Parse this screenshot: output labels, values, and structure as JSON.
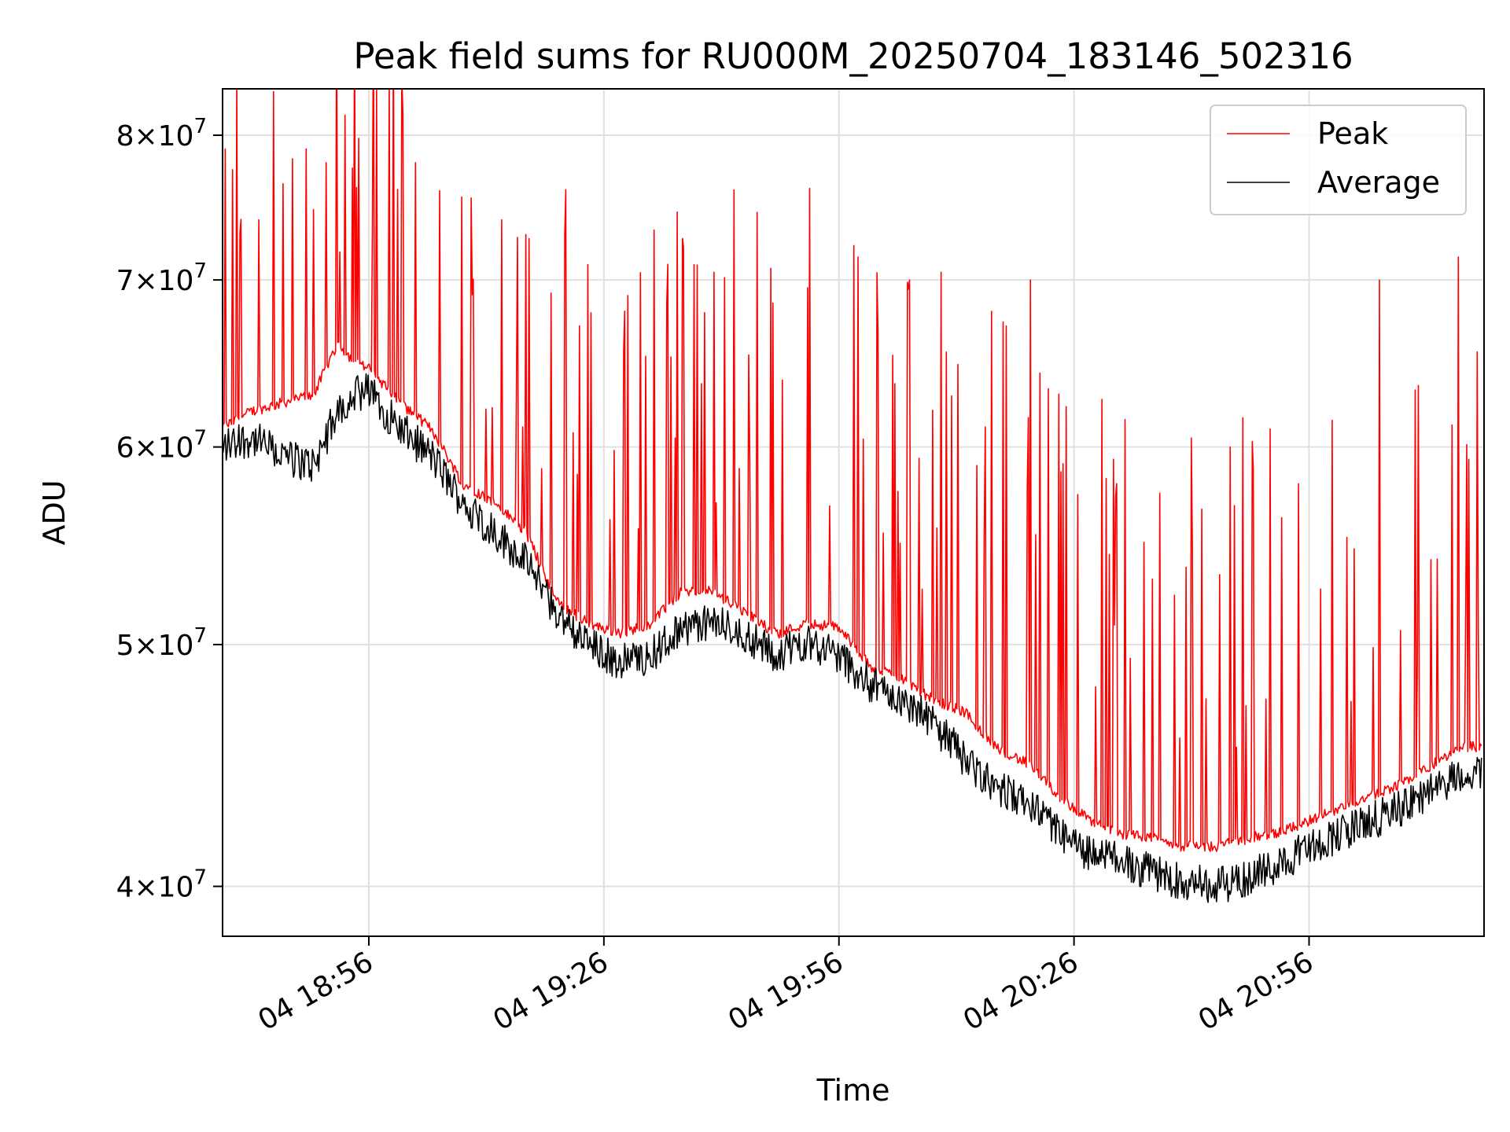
{
  "chart_data": {
    "type": "line",
    "title": "Peak field sums for RU000M_20250704_183146_502316",
    "xlabel": "Time",
    "ylabel": "ADU",
    "y_scale": "log",
    "ylim": [
      38200000,
      83500000
    ],
    "xlim": [
      "2025-07-04 18:37:20",
      "2025-07-04 21:18:20"
    ],
    "grid": true,
    "legend_position": "top-right",
    "x_ticks": [
      {
        "time": "2025-07-04 18:56",
        "label": "04 18:56"
      },
      {
        "time": "2025-07-04 19:26",
        "label": "04 19:26"
      },
      {
        "time": "2025-07-04 19:56",
        "label": "04 19:56"
      },
      {
        "time": "2025-07-04 20:26",
        "label": "04 20:26"
      },
      {
        "time": "2025-07-04 20:56",
        "label": "04 20:56"
      }
    ],
    "y_ticks": [
      {
        "value": 40000000,
        "mantissa": "4",
        "exponent": "7"
      },
      {
        "value": 50000000,
        "mantissa": "5",
        "exponent": "7"
      },
      {
        "value": 60000000,
        "mantissa": "6",
        "exponent": "7"
      },
      {
        "value": 70000000,
        "mantissa": "7",
        "exponent": "7"
      },
      {
        "value": 80000000,
        "mantissa": "8",
        "exponent": "7"
      }
    ],
    "series": [
      {
        "name": "Peak",
        "color": "#ff0000",
        "x": [
          "2025-07-04 18:37",
          "2025-07-04 18:41",
          "2025-07-04 18:45",
          "2025-07-04 18:49",
          "2025-07-04 18:52",
          "2025-07-04 18:54",
          "2025-07-04 18:56",
          "2025-07-04 19:00",
          "2025-07-04 19:04",
          "2025-07-04 19:08",
          "2025-07-04 19:12",
          "2025-07-04 19:16",
          "2025-07-04 19:20",
          "2025-07-04 19:24",
          "2025-07-04 19:28",
          "2025-07-04 19:32",
          "2025-07-04 19:36",
          "2025-07-04 19:40",
          "2025-07-04 19:44",
          "2025-07-04 19:48",
          "2025-07-04 19:52",
          "2025-07-04 19:56",
          "2025-07-04 20:00",
          "2025-07-04 20:04",
          "2025-07-04 20:08",
          "2025-07-04 20:12",
          "2025-07-04 20:16",
          "2025-07-04 20:20",
          "2025-07-04 20:24",
          "2025-07-04 20:28",
          "2025-07-04 20:32",
          "2025-07-04 20:36",
          "2025-07-04 20:40",
          "2025-07-04 20:44",
          "2025-07-04 20:48",
          "2025-07-04 20:52",
          "2025-07-04 20:56",
          "2025-07-04 21:00",
          "2025-07-04 21:04",
          "2025-07-04 21:08",
          "2025-07-04 21:12",
          "2025-07-04 21:16",
          "2025-07-04 21:18"
        ],
        "values": [
          61000000,
          62000000,
          62500000,
          63000000,
          66000000,
          65000000,
          64500000,
          62500000,
          61000000,
          58000000,
          57000000,
          55500000,
          52000000,
          51000000,
          50500000,
          51000000,
          52500000,
          52500000,
          51500000,
          50500000,
          51000000,
          50800000,
          49000000,
          48500000,
          47500000,
          47000000,
          45500000,
          44800000,
          43500000,
          42500000,
          42000000,
          41800000,
          41500000,
          41500000,
          41800000,
          42000000,
          42500000,
          43000000,
          43500000,
          44000000,
          44800000,
          45500000,
          45500000
        ],
        "spikes": [
          {
            "x": "2025-07-04 18:37:40",
            "value": 79000000
          },
          {
            "x": "2025-07-04 18:38:40",
            "value": 77500000
          },
          {
            "x": "2025-07-04 18:42:00",
            "value": 74000000
          },
          {
            "x": "2025-07-04 18:45:00",
            "value": 76500000
          },
          {
            "x": "2025-07-04 18:48:00",
            "value": 79000000
          },
          {
            "x": "2025-07-04 18:50:30",
            "value": 78000000
          },
          {
            "x": "2025-07-04 18:53:00",
            "value": 81500000
          },
          {
            "x": "2025-07-04 18:57:00",
            "value": 83500000
          },
          {
            "x": "2025-07-04 19:00:20",
            "value": 81500000
          },
          {
            "x": "2025-07-04 19:02:00",
            "value": 78000000
          },
          {
            "x": "2025-07-04 19:05:00",
            "value": 76000000
          },
          {
            "x": "2025-07-04 19:09:00",
            "value": 75500000
          },
          {
            "x": "2025-07-04 19:13:00",
            "value": 74000000
          },
          {
            "x": "2025-07-04 19:16:00",
            "value": 73000000
          },
          {
            "x": "2025-07-04 19:21:00",
            "value": 73000000
          },
          {
            "x": "2025-07-04 19:24:00",
            "value": 71000000
          },
          {
            "x": "2025-07-04 19:29:00",
            "value": 69000000
          },
          {
            "x": "2025-07-04 19:34:00",
            "value": 68500000
          },
          {
            "x": "2025-07-04 19:37:30",
            "value": 71000000
          },
          {
            "x": "2025-07-04 19:40:00",
            "value": 70500000
          },
          {
            "x": "2025-07-04 19:45:30",
            "value": 74500000
          },
          {
            "x": "2025-07-04 19:52:00",
            "value": 69500000
          },
          {
            "x": "2025-07-04 19:58:30",
            "value": 71500000
          },
          {
            "x": "2025-07-04 20:05:00",
            "value": 70000000
          },
          {
            "x": "2025-07-04 20:09:00",
            "value": 70500000
          },
          {
            "x": "2025-07-04 20:15:30",
            "value": 68000000
          },
          {
            "x": "2025-07-04 20:20:30",
            "value": 70000000
          },
          {
            "x": "2025-07-04 20:24:00",
            "value": 63000000
          },
          {
            "x": "2025-07-04 20:31:30",
            "value": 58000000
          },
          {
            "x": "2025-07-04 20:37:00",
            "value": 57500000
          },
          {
            "x": "2025-07-04 20:41:00",
            "value": 60500000
          },
          {
            "x": "2025-07-04 20:46:00",
            "value": 60000000
          },
          {
            "x": "2025-07-04 20:51:00",
            "value": 61000000
          },
          {
            "x": "2025-07-04 20:59:00",
            "value": 61500000
          },
          {
            "x": "2025-07-04 21:05:00",
            "value": 70000000
          },
          {
            "x": "2025-07-04 21:10:00",
            "value": 63500000
          },
          {
            "x": "2025-07-04 21:15:00",
            "value": 71500000
          },
          {
            "x": "2025-07-04 21:17:30",
            "value": 65500000
          }
        ]
      },
      {
        "name": "Average",
        "color": "#000000",
        "x": [
          "2025-07-04 18:37",
          "2025-07-04 18:41",
          "2025-07-04 18:45",
          "2025-07-04 18:49",
          "2025-07-04 18:52",
          "2025-07-04 18:54",
          "2025-07-04 18:56",
          "2025-07-04 19:00",
          "2025-07-04 19:04",
          "2025-07-04 19:08",
          "2025-07-04 19:12",
          "2025-07-04 19:16",
          "2025-07-04 19:20",
          "2025-07-04 19:24",
          "2025-07-04 19:28",
          "2025-07-04 19:32",
          "2025-07-04 19:36",
          "2025-07-04 19:40",
          "2025-07-04 19:44",
          "2025-07-04 19:48",
          "2025-07-04 19:52",
          "2025-07-04 19:56",
          "2025-07-04 20:00",
          "2025-07-04 20:04",
          "2025-07-04 20:08",
          "2025-07-04 20:12",
          "2025-07-04 20:16",
          "2025-07-04 20:20",
          "2025-07-04 20:24",
          "2025-07-04 20:28",
          "2025-07-04 20:32",
          "2025-07-04 20:36",
          "2025-07-04 20:40",
          "2025-07-04 20:44",
          "2025-07-04 20:48",
          "2025-07-04 20:52",
          "2025-07-04 20:56",
          "2025-07-04 21:00",
          "2025-07-04 21:04",
          "2025-07-04 21:08",
          "2025-07-04 21:12",
          "2025-07-04 21:16",
          "2025-07-04 21:18"
        ],
        "values": [
          60000000,
          60500000,
          59500000,
          59000000,
          62000000,
          63000000,
          63200000,
          61000000,
          59500000,
          57000000,
          55500000,
          54000000,
          51500000,
          50000000,
          49200000,
          49500000,
          50800000,
          51000000,
          50500000,
          49500000,
          50200000,
          49500000,
          48200000,
          47500000,
          46500000,
          45000000,
          43800000,
          43200000,
          42000000,
          41200000,
          41000000,
          40500000,
          40200000,
          40000000,
          40300000,
          40800000,
          41500000,
          42000000,
          42500000,
          43000000,
          43800000,
          44500000,
          44300000
        ]
      }
    ]
  }
}
